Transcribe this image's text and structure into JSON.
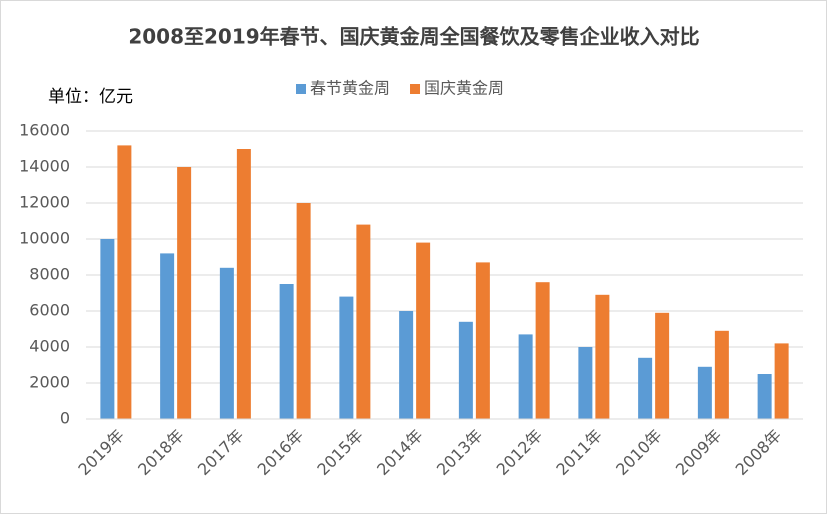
{
  "chart_data": {
    "type": "bar",
    "title": "2008至2019年春节、国庆黄金周全国餐饮及零售企业收入对比",
    "ylabel": "单位：亿元",
    "categories": [
      "2019年",
      "2018年",
      "2017年",
      "2016年",
      "2015年",
      "2014年",
      "2013年",
      "2012年",
      "2011年",
      "2010年",
      "2009年",
      "2008年"
    ],
    "series": [
      {
        "name": "春节黄金周",
        "color": "#5b9bd5",
        "values": [
          10000,
          9200,
          8400,
          7500,
          6800,
          6000,
          5400,
          4700,
          4000,
          3400,
          2900,
          2500
        ]
      },
      {
        "name": "国庆黄金周",
        "color": "#ed7d31",
        "values": [
          15200,
          14000,
          15000,
          12000,
          10800,
          9800,
          8700,
          7600,
          6900,
          5900,
          4900,
          4200
        ]
      }
    ],
    "ylim": [
      0,
      16000
    ],
    "yticks": [
      0,
      2000,
      4000,
      6000,
      8000,
      10000,
      12000,
      14000,
      16000
    ],
    "grid": true,
    "legend": "top"
  }
}
